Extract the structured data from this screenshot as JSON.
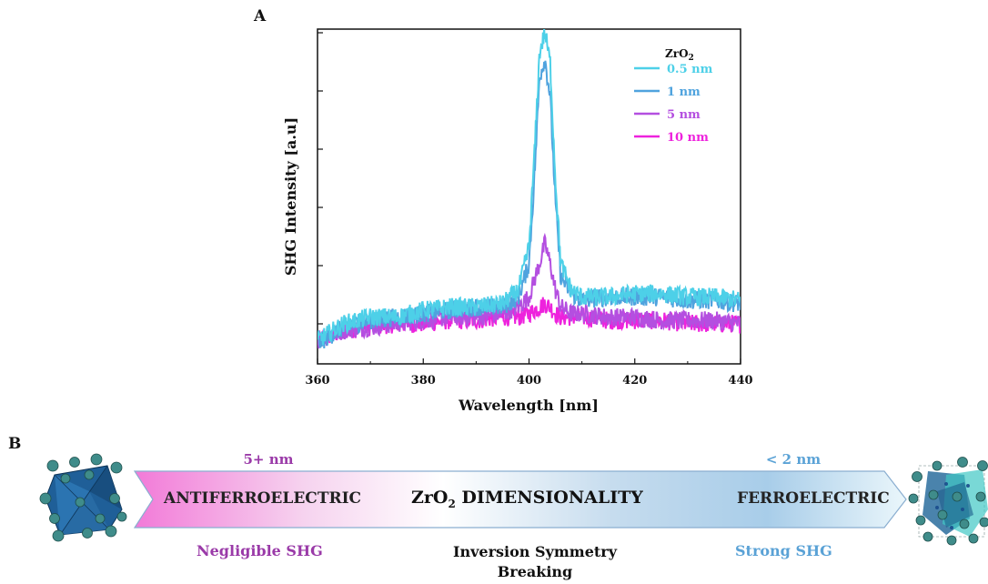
{
  "panel_a_label": "A",
  "panel_b_label": "B",
  "chart_data": {
    "type": "line",
    "xlabel": "Wavelength [nm]",
    "ylabel": "SHG Intensity [a.u]",
    "xlim": [
      360,
      440
    ],
    "xticks": [
      360,
      380,
      400,
      420,
      440
    ],
    "ylim": [
      0,
      1
    ],
    "y_tick_labels_shown": false,
    "grid": false,
    "legend": {
      "title": "ZrO",
      "title_subscript": "2",
      "placement": "top-right"
    },
    "series": [
      {
        "name": "0.5 nm",
        "color": "#4dd0e8",
        "x": [
          360,
          365,
          370,
          375,
          380,
          385,
          390,
          395,
          398,
          400,
          401,
          402,
          403,
          404,
          405,
          406,
          408,
          410,
          415,
          420,
          425,
          430,
          435,
          440
        ],
        "y": [
          0.07,
          0.12,
          0.14,
          0.14,
          0.16,
          0.17,
          0.17,
          0.18,
          0.22,
          0.35,
          0.62,
          0.93,
          0.99,
          0.9,
          0.55,
          0.3,
          0.22,
          0.2,
          0.2,
          0.21,
          0.21,
          0.2,
          0.2,
          0.19
        ]
      },
      {
        "name": "1 nm",
        "color": "#4fa3de",
        "x": [
          360,
          365,
          370,
          375,
          380,
          385,
          390,
          395,
          398,
          400,
          401,
          402,
          403,
          404,
          405,
          406,
          408,
          410,
          415,
          420,
          425,
          430,
          435,
          440
        ],
        "y": [
          0.06,
          0.11,
          0.13,
          0.14,
          0.15,
          0.16,
          0.17,
          0.17,
          0.2,
          0.3,
          0.55,
          0.86,
          0.91,
          0.8,
          0.48,
          0.26,
          0.21,
          0.19,
          0.2,
          0.2,
          0.2,
          0.19,
          0.19,
          0.18
        ]
      },
      {
        "name": "5 nm",
        "color": "#b44fe0",
        "x": [
          360,
          365,
          370,
          375,
          380,
          385,
          390,
          395,
          398,
          400,
          401,
          402,
          403,
          404,
          405,
          406,
          408,
          410,
          415,
          420,
          425,
          430,
          435,
          440
        ],
        "y": [
          0.07,
          0.1,
          0.11,
          0.12,
          0.13,
          0.14,
          0.14,
          0.15,
          0.17,
          0.2,
          0.25,
          0.3,
          0.36,
          0.3,
          0.22,
          0.17,
          0.15,
          0.15,
          0.14,
          0.14,
          0.13,
          0.13,
          0.13,
          0.12
        ]
      },
      {
        "name": "10 nm",
        "color": "#ee22dd",
        "x": [
          360,
          365,
          370,
          375,
          380,
          385,
          390,
          395,
          398,
          400,
          401,
          402,
          403,
          404,
          405,
          406,
          408,
          410,
          415,
          420,
          425,
          430,
          435,
          440
        ],
        "y": [
          0.07,
          0.1,
          0.11,
          0.12,
          0.12,
          0.13,
          0.13,
          0.14,
          0.14,
          0.15,
          0.16,
          0.17,
          0.18,
          0.17,
          0.15,
          0.14,
          0.14,
          0.14,
          0.13,
          0.13,
          0.13,
          0.12,
          0.12,
          0.12
        ]
      }
    ]
  },
  "panel_b": {
    "left_thickness": "5+ nm",
    "right_thickness": "< 2 nm",
    "left_phase": "ANTIFERROELECTRIC",
    "center_title_prefix": "ZrO",
    "center_title_sub": "2",
    "center_title_suffix": " DIMENSIONALITY",
    "right_phase": "FERROELECTRIC",
    "left_caption": "Negligible SHG",
    "center_caption_line1": "Inversion Symmetry",
    "center_caption_line2": "Breaking",
    "right_caption": "Strong SHG",
    "colors": {
      "left": "#9a3aa8",
      "right": "#5aa2d6",
      "center": "#111111"
    }
  }
}
